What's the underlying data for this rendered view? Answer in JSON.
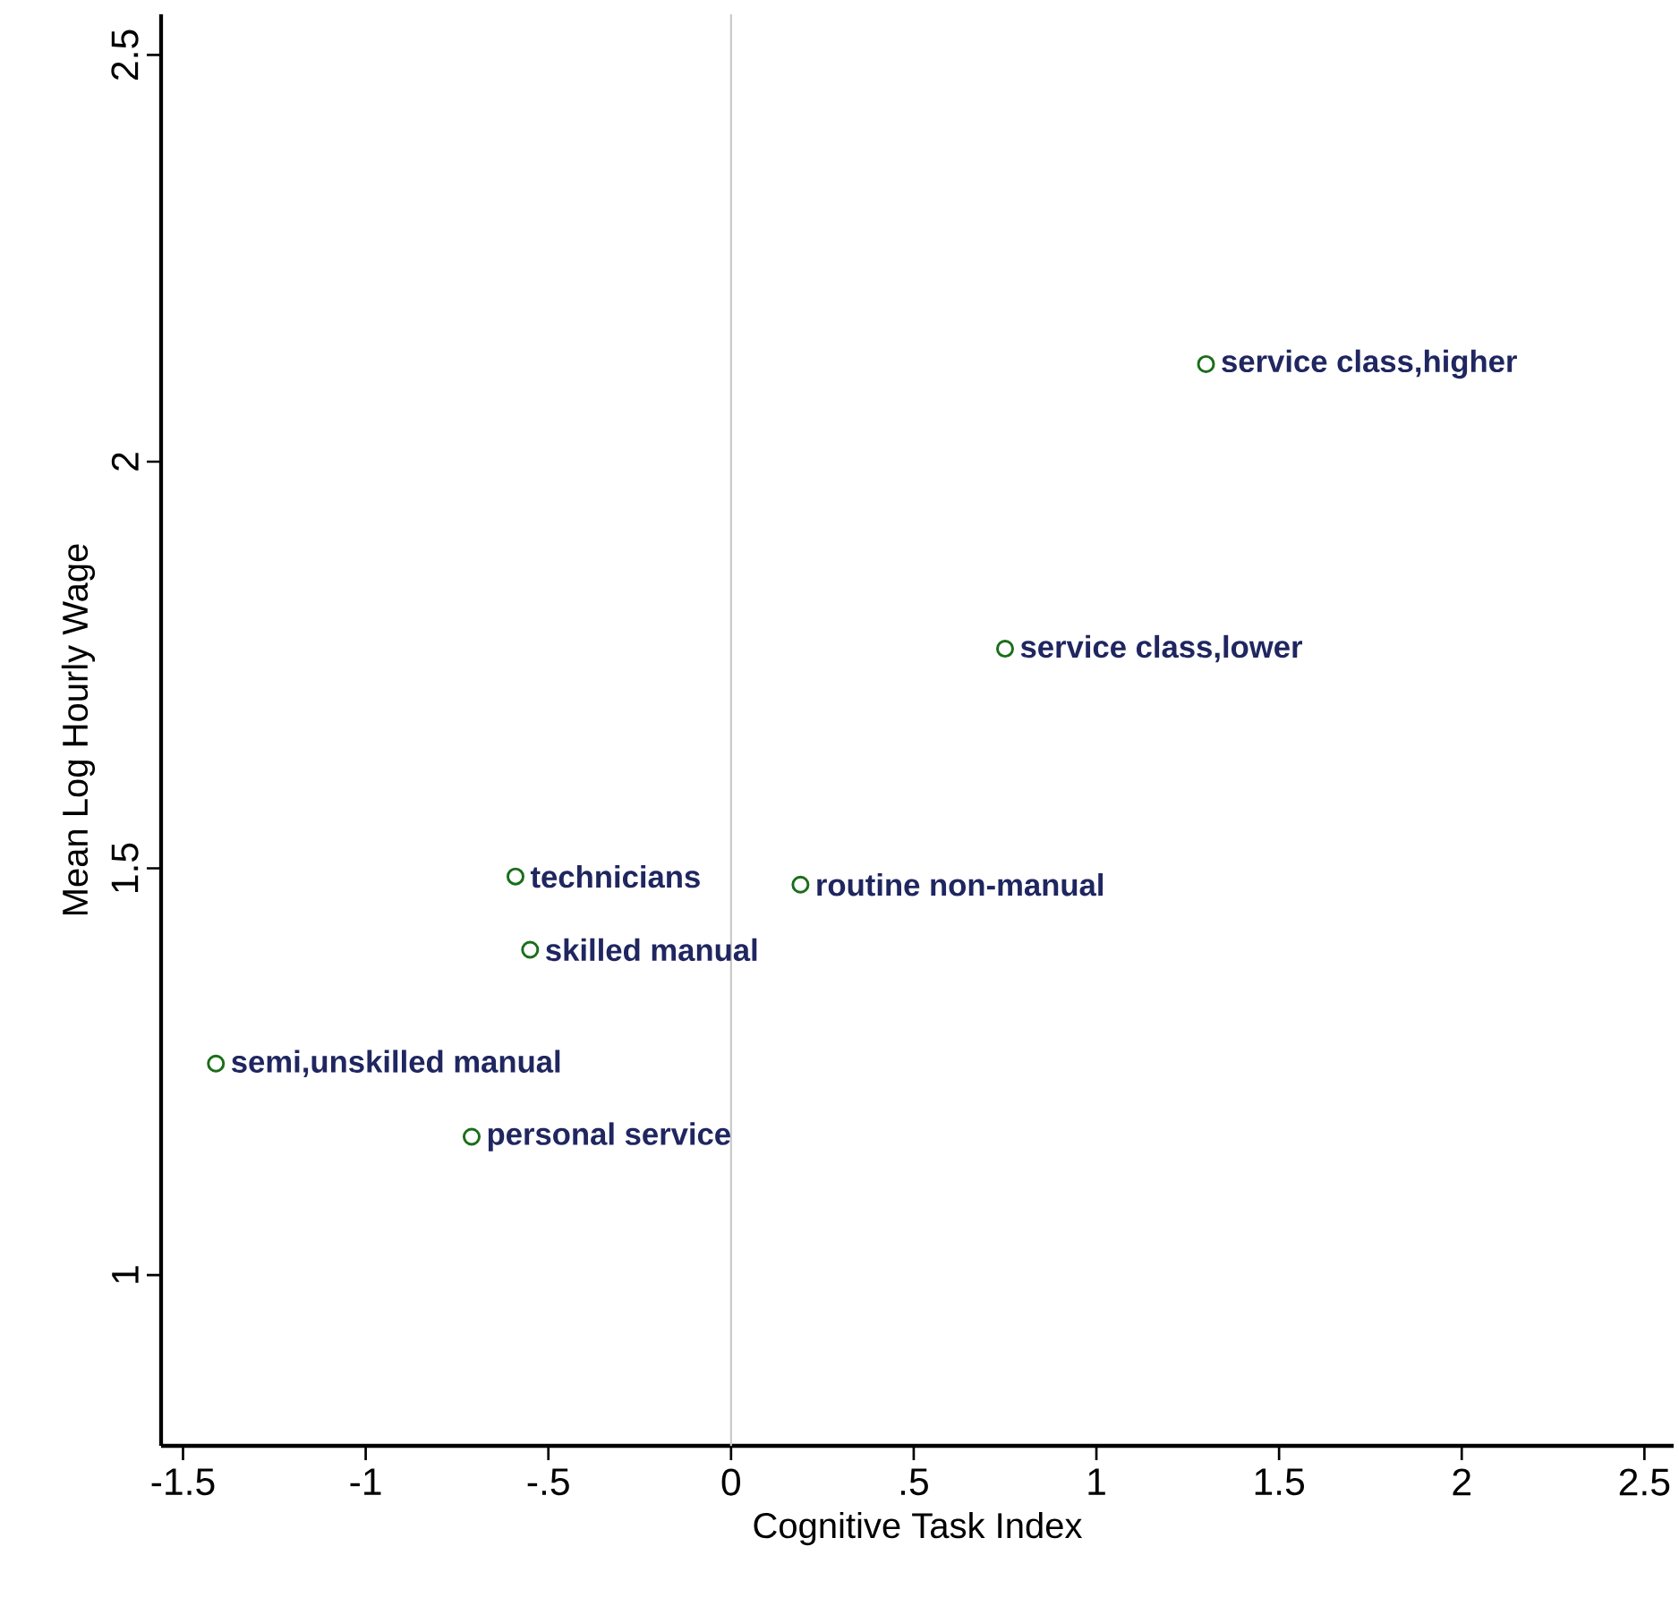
{
  "chart_data": {
    "type": "scatter",
    "xlabel": "Cognitive Task Index",
    "ylabel": "Mean Log Hourly Wage",
    "x": [
      1.3,
      0.75,
      0.19,
      -0.59,
      -0.55,
      -1.41,
      -0.71
    ],
    "series": [
      {
        "color": "#1a6e1a",
        "values": [
          2.12,
          1.77,
          1.48,
          1.49,
          1.4,
          1.26,
          1.17
        ]
      }
    ],
    "marker": "circle",
    "annotations": [
      {
        "text": "service class,higher",
        "x": 1.3,
        "y": 2.12
      },
      {
        "text": "service class,lower",
        "x": 0.75,
        "y": 1.77
      },
      {
        "text": "routine non-manual",
        "x": 0.19,
        "y": 1.48
      },
      {
        "text": "technicians",
        "x": -0.59,
        "y": 1.49
      },
      {
        "text": "skilled manual",
        "x": -0.55,
        "y": 1.4
      },
      {
        "text": "semi,unskilled manual",
        "x": -1.41,
        "y": 1.26
      },
      {
        "text": "personal service",
        "x": -0.71,
        "y": 1.17
      }
    ],
    "ref_lines": [
      {
        "axis": "x",
        "value": 0,
        "color": "#c8c8c8"
      }
    ],
    "xlim": [
      -1.56,
      2.58
    ],
    "ylim": [
      0.79,
      2.55
    ],
    "xticks": [
      -1.5,
      -1,
      {
        "value": -0.5,
        "label": "-.5"
      },
      0,
      {
        "value": 0.5,
        "label": ".5"
      },
      1,
      1.5,
      2,
      2.5
    ],
    "yticks": [
      1,
      1.5,
      2,
      2.5
    ],
    "grid": false
  }
}
